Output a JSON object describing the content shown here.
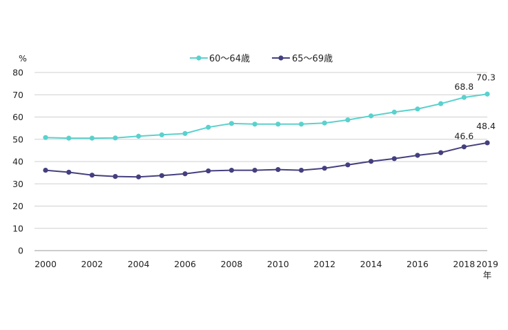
{
  "chart_data": {
    "type": "line",
    "y_unit": "%",
    "x_unit": "年",
    "x": [
      2000,
      2001,
      2002,
      2003,
      2004,
      2005,
      2006,
      2007,
      2008,
      2009,
      2010,
      2011,
      2012,
      2013,
      2014,
      2015,
      2016,
      2017,
      2018,
      2019
    ],
    "x_tick_labels": [
      "2000",
      "2002",
      "2004",
      "2006",
      "2008",
      "2010",
      "2012",
      "2014",
      "2016",
      "2018",
      "2019"
    ],
    "y_ticks": [
      0,
      10,
      20,
      30,
      40,
      50,
      60,
      70,
      80
    ],
    "ylim": [
      0,
      80
    ],
    "grid": true,
    "legend_position": "top",
    "series": [
      {
        "name": "60～64歳",
        "color": "#5ad1cd",
        "values": [
          50.8,
          50.5,
          50.5,
          50.6,
          51.4,
          52.0,
          52.6,
          55.4,
          57.1,
          56.8,
          56.8,
          56.8,
          57.3,
          58.7,
          60.5,
          62.2,
          63.6,
          66.0,
          68.8,
          70.3
        ],
        "labels": [
          {
            "x": 2018,
            "text": "68.8"
          },
          {
            "x": 2019,
            "text": "70.3"
          }
        ]
      },
      {
        "name": "65～69歳",
        "color": "#443f7e",
        "values": [
          36.1,
          35.2,
          33.9,
          33.3,
          33.1,
          33.7,
          34.5,
          35.8,
          36.1,
          36.1,
          36.4,
          36.1,
          37.0,
          38.5,
          40.1,
          41.3,
          42.8,
          44.0,
          46.6,
          48.4
        ],
        "labels": [
          {
            "x": 2018,
            "text": "46.6"
          },
          {
            "x": 2019,
            "text": "48.4"
          }
        ]
      }
    ]
  }
}
